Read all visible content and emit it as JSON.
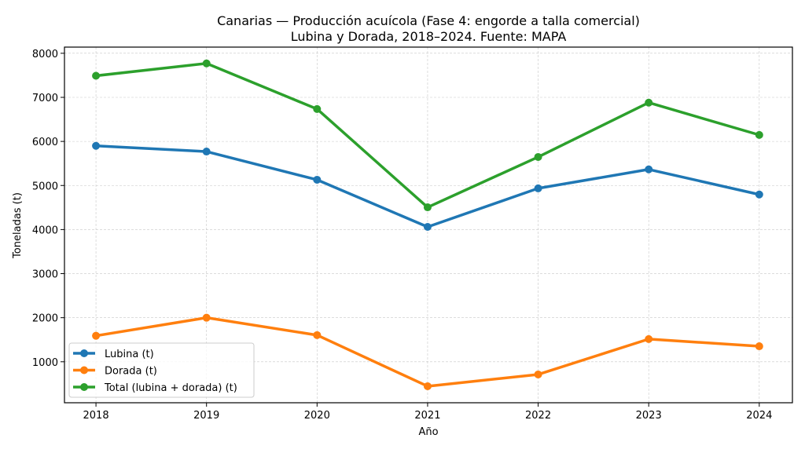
{
  "chart_data": {
    "type": "line",
    "title": "Canarias — Producción acuícola (Fase 4: engorde a talla comercial)",
    "subtitle": "Lubina y Dorada, 2018–2024. Fuente: MAPA",
    "xlabel": "Año",
    "ylabel": "Toneladas (t)",
    "x": [
      2018,
      2019,
      2020,
      2021,
      2022,
      2023,
      2024
    ],
    "xticks": [
      "2018",
      "2019",
      "2020",
      "2021",
      "2022",
      "2023",
      "2024"
    ],
    "yticks": [
      "1000",
      "2000",
      "3000",
      "4000",
      "5000",
      "6000",
      "7000",
      "8000"
    ],
    "xlim": [
      2017.715,
      2024.3
    ],
    "ylim": [
      70,
      8140
    ],
    "grid": true,
    "legend_position": "lower-left",
    "series": [
      {
        "name": "Lubina (t)",
        "color": "#1f77b4",
        "values": [
          5900,
          5770,
          5130,
          4060,
          4935,
          5365,
          4795
        ]
      },
      {
        "name": "Dorada (t)",
        "color": "#ff7f0e",
        "values": [
          1590,
          2000,
          1605,
          445,
          712,
          1515,
          1352
        ]
      },
      {
        "name": "Total (lubina + dorada) (t)",
        "color": "#2ca02c",
        "values": [
          7490,
          7770,
          6735,
          4505,
          5647,
          6880,
          6147
        ]
      }
    ]
  }
}
